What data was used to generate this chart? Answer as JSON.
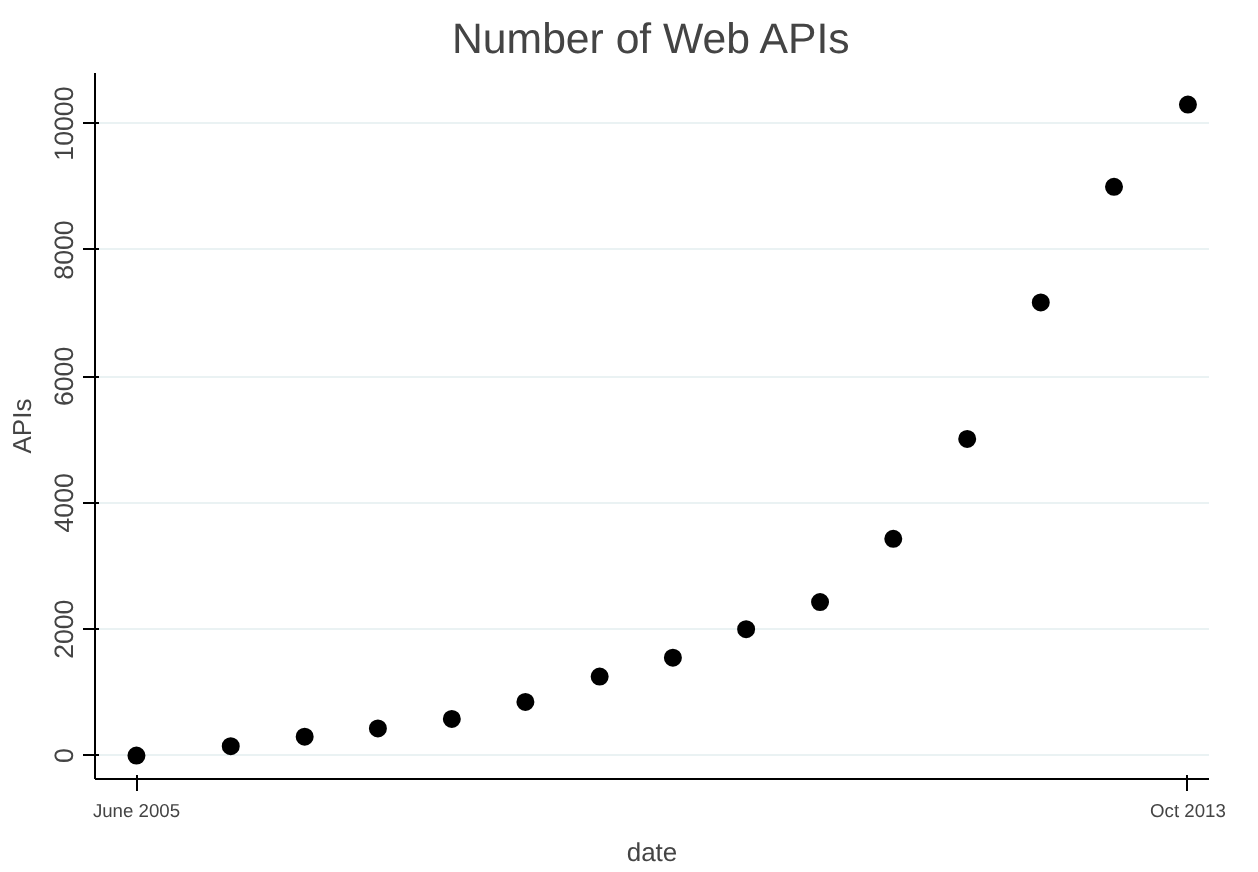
{
  "chart_data": {
    "type": "scatter",
    "title": "Number of Web APIs",
    "xlabel": "date",
    "ylabel": "APIs",
    "x": [
      "2005-06",
      "2006-03",
      "2006-10",
      "2007-05",
      "2007-12",
      "2008-07",
      "2009-02",
      "2009-09",
      "2010-04",
      "2010-11",
      "2011-06",
      "2012-01",
      "2012-08",
      "2013-03",
      "2013-10"
    ],
    "series": [
      {
        "color": "#000000",
        "values": [
          0,
          150,
          300,
          430,
          580,
          850,
          1250,
          1550,
          2000,
          2430,
          3430,
          5010,
          7170,
          9000,
          10300
        ]
      }
    ],
    "xlim": [
      "2005-02",
      "2013-12"
    ],
    "xticks": [
      {
        "value": "2005-06",
        "label": "June 2005"
      },
      {
        "value": "2013-10",
        "label": "Oct 2013"
      }
    ],
    "ylim": [
      -370,
      10800
    ],
    "yticks": [
      0,
      2000,
      4000,
      6000,
      8000,
      10000
    ],
    "grid": "y",
    "marker": "circle"
  }
}
